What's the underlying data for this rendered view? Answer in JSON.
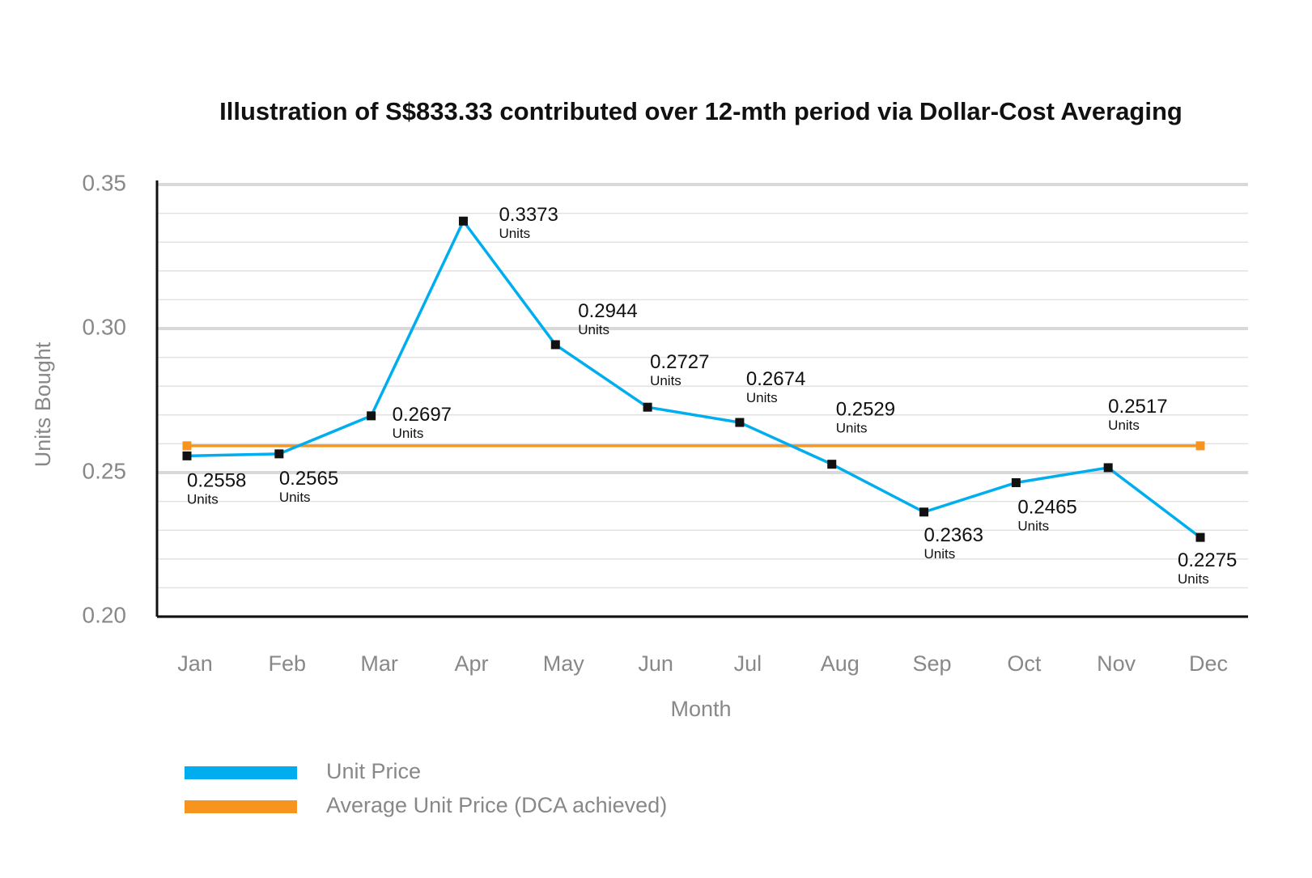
{
  "chart_data": {
    "type": "line",
    "title": "Illustration of S$833.33 contributed over 12-mth period via Dollar-Cost Averaging",
    "x_label": "Month",
    "y_label": "Units Bought",
    "categories": [
      "Jan",
      "Feb",
      "Mar",
      "Apr",
      "May",
      "Jun",
      "Jul",
      "Aug",
      "Sep",
      "Oct",
      "Nov",
      "Dec"
    ],
    "series": [
      {
        "name": "Unit Price",
        "color": "#00aeef",
        "values": [
          0.2558,
          0.2565,
          0.2697,
          0.3373,
          0.2944,
          0.2727,
          0.2674,
          0.2529,
          0.2363,
          0.2465,
          0.2517,
          0.2275
        ],
        "value_labels": [
          "0.2558 Units",
          "0.2565 Units",
          "0.2697 Units",
          "0.3373 Units",
          "0.2944 Units",
          "0.2727 Units",
          "0.2674 Units",
          "0.2529 Units",
          "0.2363 Units",
          "0.2465 Units",
          "0.2517 Units",
          "0.2275 Units"
        ]
      },
      {
        "name": "Average Unit Price (DCA achieved)",
        "color": "#f7941d",
        "values": [
          0.2593,
          0.2593,
          0.2593,
          0.2593,
          0.2593,
          0.2593,
          0.2593,
          0.2593,
          0.2593,
          0.2593,
          0.2593,
          0.2593
        ]
      }
    ],
    "ylim": [
      0.2,
      0.35
    ],
    "yticks": [
      {
        "value": 0.2,
        "label": "0.20"
      },
      0.25,
      {
        "value": 0.3,
        "label": "0.30"
      },
      0.35
    ],
    "minor_yticks": [
      0.21,
      0.22,
      0.23,
      0.24,
      0.26,
      0.27,
      0.28,
      0.29,
      0.31,
      0.32,
      0.33,
      0.34
    ],
    "grid": true
  }
}
